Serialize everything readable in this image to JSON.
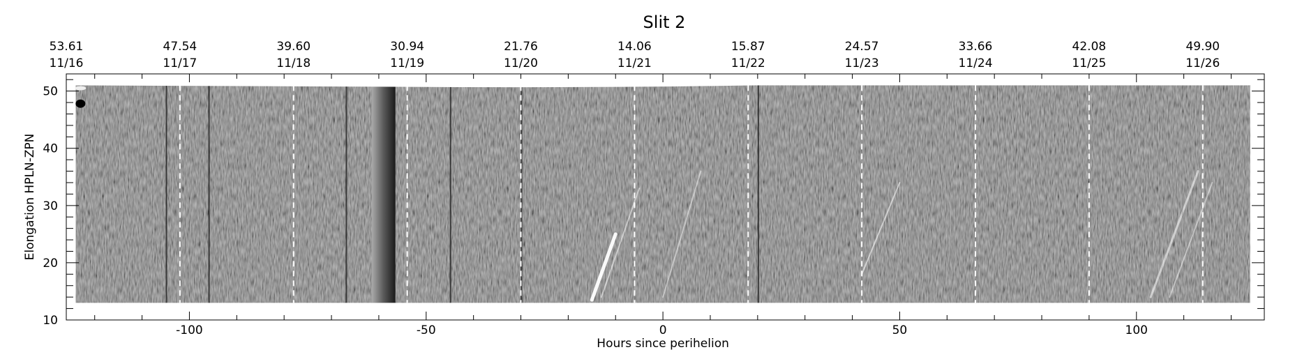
{
  "chart_data": {
    "type": "heatmap",
    "title": "Slit 2",
    "xlabel": "Hours since perihelion",
    "ylabel": "Elongation  HPLN-ZPN",
    "xlim": [
      -126,
      127
    ],
    "ylim": [
      10,
      53
    ],
    "x_ticks": [
      -100,
      -50,
      0,
      50,
      100
    ],
    "y_ticks": [
      10,
      20,
      30,
      40,
      50
    ],
    "top_axis": {
      "positions": [
        -126,
        -102,
        -78,
        -54,
        -30,
        -6,
        18,
        42,
        66,
        90,
        114
      ],
      "distances": [
        "53.61",
        "47.54",
        "39.60",
        "30.94",
        "21.76",
        "14.06",
        "15.87",
        "24.57",
        "33.66",
        "42.08",
        "49.90"
      ],
      "dates": [
        "11/16",
        "11/17",
        "11/18",
        "11/19",
        "11/20",
        "11/21",
        "11/22",
        "11/23",
        "11/24",
        "11/25",
        "11/26"
      ]
    },
    "day_boundaries": [
      -102,
      -78,
      -54,
      -30,
      -6,
      18,
      42,
      66,
      90,
      114
    ],
    "data_extent": {
      "x": [
        -124,
        124
      ],
      "y": [
        13,
        51
      ]
    },
    "colormap": "grayscale"
  }
}
